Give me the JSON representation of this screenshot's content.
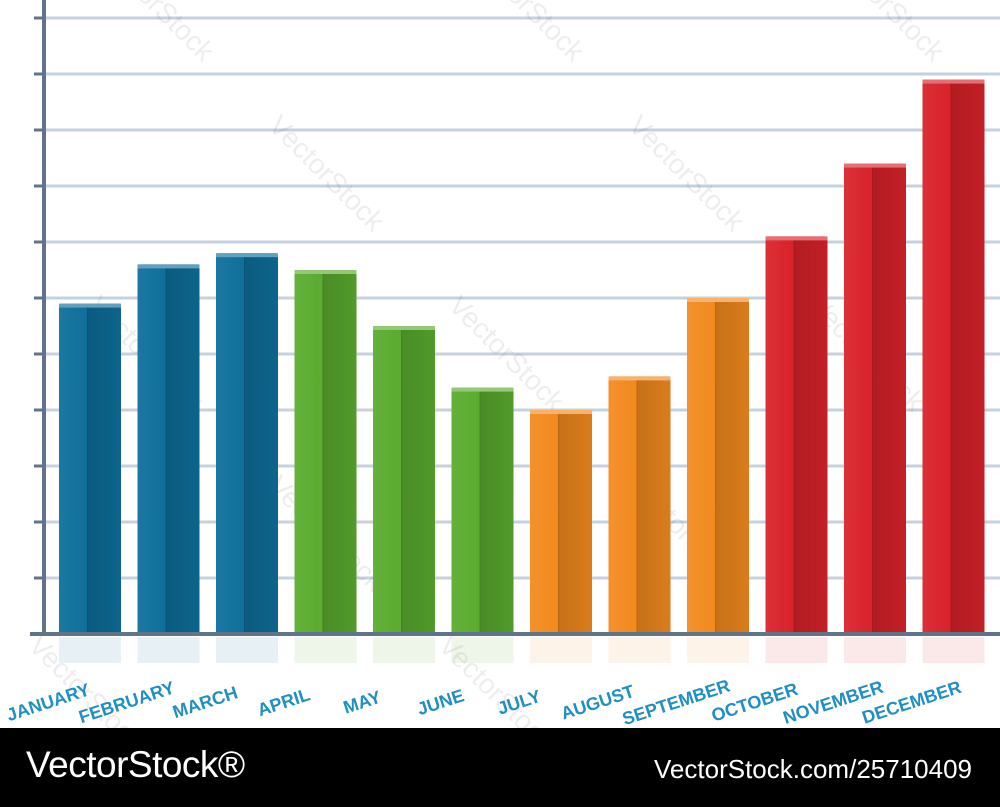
{
  "chart_data": {
    "type": "bar",
    "categories": [
      "JANUARY",
      "FEBRUARY",
      "MARCH",
      "APRIL",
      "MAY",
      "JUNE",
      "JULY",
      "AUGUST",
      "SEPTEMBER",
      "OCTOBER",
      "NOVEMBER",
      "DECEMBER"
    ],
    "values": [
      5.9,
      6.6,
      6.8,
      6.5,
      5.5,
      4.4,
      4.0,
      4.6,
      6.0,
      7.1,
      8.4,
      9.9
    ],
    "ylim": [
      0,
      11
    ],
    "grid": true,
    "title": "",
    "xlabel": "",
    "ylabel": "",
    "bar_colors": [
      "#0e6f9b",
      "#0e6f9b",
      "#0e6f9b",
      "#5aab2f",
      "#5aab2f",
      "#5aab2f",
      "#f28a1e",
      "#f28a1e",
      "#f28a1e",
      "#d9222a",
      "#d9222a",
      "#d9222a"
    ],
    "label_color": "#1f8fc4",
    "gridline_color": "#c5d2de",
    "axis_color": "#5f7486"
  },
  "watermark": "VectorStock",
  "footer": {
    "brand": "VectorStock®",
    "image_id": "VectorStock.com/25710409"
  }
}
